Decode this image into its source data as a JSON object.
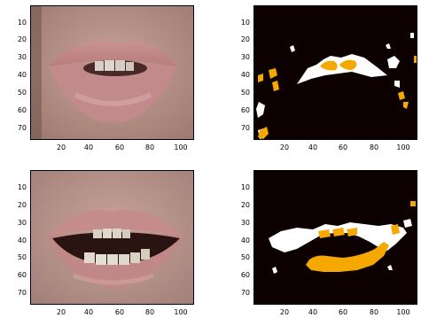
{
  "figure": {
    "panels": [
      {
        "id": "mouth-closed-photo",
        "kind": "photo",
        "y_ticks": [
          "10",
          "20",
          "30",
          "40",
          "50",
          "60",
          "70"
        ],
        "x_ticks": [
          "20",
          "40",
          "60",
          "80",
          "100"
        ]
      },
      {
        "id": "mouth-closed-segmentation",
        "kind": "segmentation",
        "y_ticks": [
          "10",
          "20",
          "30",
          "40",
          "50",
          "60",
          "70"
        ],
        "x_ticks": [
          "20",
          "40",
          "60",
          "80",
          "100"
        ]
      },
      {
        "id": "mouth-open-photo",
        "kind": "photo",
        "y_ticks": [
          "10",
          "20",
          "30",
          "40",
          "50",
          "60",
          "70"
        ],
        "x_ticks": [
          "20",
          "40",
          "60",
          "80",
          "100"
        ]
      },
      {
        "id": "mouth-open-segmentation",
        "kind": "segmentation",
        "y_ticks": [
          "10",
          "20",
          "30",
          "40",
          "50",
          "60",
          "70"
        ],
        "x_ticks": [
          "20",
          "40",
          "60",
          "80",
          "100"
        ]
      }
    ],
    "colors": {
      "background_segmentation": "#0c0000",
      "lip_region": "#ffffff",
      "teeth_region": "#f5a800",
      "skin": "#b99086",
      "lip": "#c68989"
    }
  }
}
